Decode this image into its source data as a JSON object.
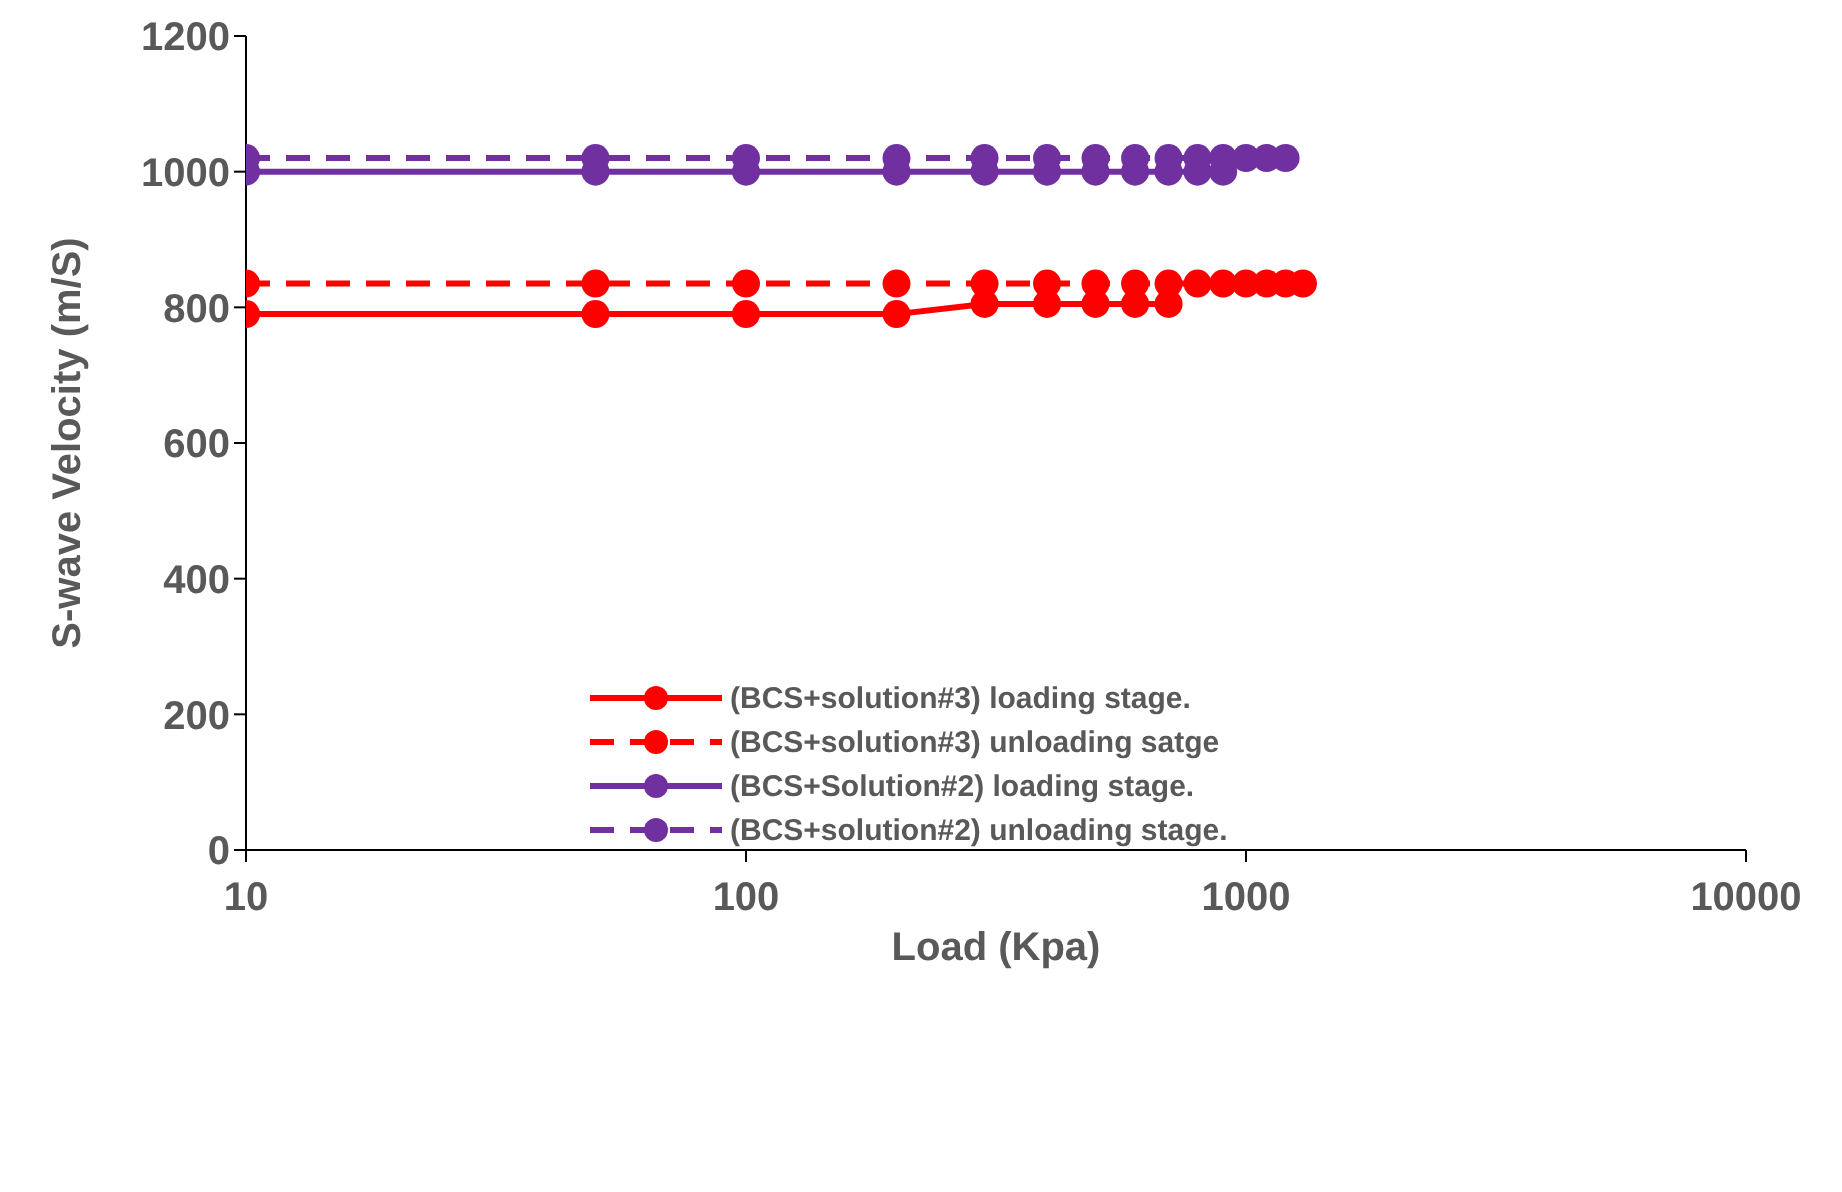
{
  "chart_data": {
    "type": "line",
    "xlabel": "Load (Kpa)",
    "ylabel": "S-wave Velocity (m/S)",
    "log": "x",
    "xlim": [
      10,
      10000
    ],
    "xticks": [
      10,
      100,
      1000,
      10000
    ],
    "ylim": [
      0,
      1200
    ],
    "yticks": [
      0,
      200,
      400,
      600,
      800,
      1000,
      1200
    ],
    "legend": "center",
    "marker": "circle",
    "series": [
      {
        "name": "(BCS+solution#3) loading stage.",
        "color": "#ff0000",
        "line_style": "solid",
        "x": [
          10,
          50,
          100,
          200,
          300,
          400,
          500,
          600,
          700
        ],
        "values": [
          790,
          790,
          790,
          790,
          805,
          805,
          805,
          805,
          805
        ]
      },
      {
        "name": "(BCS+solution#3) unloading satge",
        "color": "#ff0000",
        "line_style": "dashed",
        "x": [
          10,
          50,
          100,
          200,
          300,
          400,
          500,
          600,
          700,
          800,
          900,
          1000,
          1100,
          1200,
          1300
        ],
        "values": [
          835,
          835,
          835,
          835,
          835,
          835,
          835,
          835,
          835,
          835,
          835,
          835,
          835,
          835,
          835
        ]
      },
      {
        "name": "(BCS+Solution#2) loading stage.",
        "color": "#7030a0",
        "line_style": "solid",
        "x": [
          10,
          50,
          100,
          200,
          300,
          400,
          500,
          600,
          700,
          800,
          900
        ],
        "values": [
          1000,
          1000,
          1000,
          1000,
          1000,
          1000,
          1000,
          1000,
          1000,
          1000,
          1000
        ]
      },
      {
        "name": "(BCS+solution#2) unloading stage.",
        "color": "#7030a0",
        "line_style": "dashed",
        "x": [
          10,
          50,
          100,
          200,
          300,
          400,
          500,
          600,
          700,
          800,
          900,
          1000,
          1100,
          1200
        ],
        "values": [
          1020,
          1020,
          1020,
          1020,
          1020,
          1020,
          1020,
          1020,
          1020,
          1020,
          1020,
          1020,
          1020,
          1020
        ]
      }
    ]
  }
}
